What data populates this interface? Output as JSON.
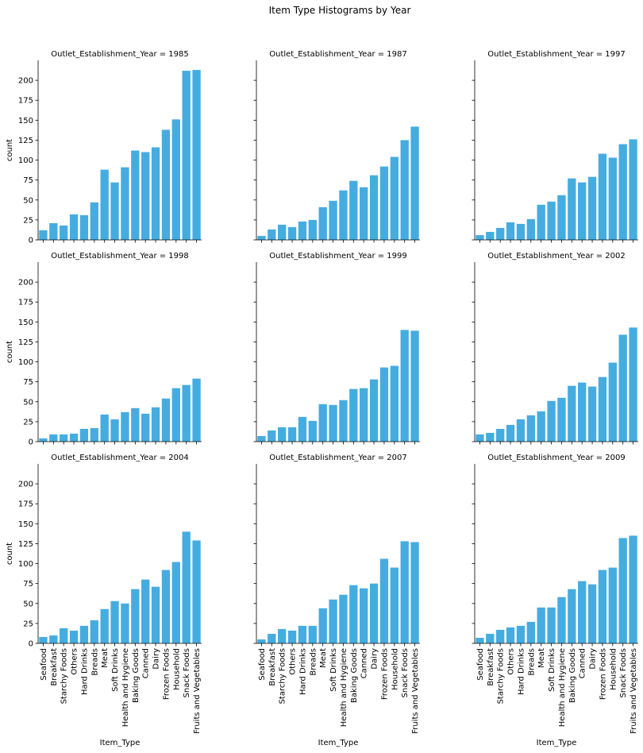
{
  "title": "Item Type Histograms by Year",
  "bar_color": "#45ACE0",
  "chart_data": {
    "type": "bar",
    "facet_by": "Outlet_Establishment_Year",
    "xlabel": "Item_Type",
    "ylabel": "count",
    "ylim": [
      0,
      225
    ],
    "yticks": [
      0,
      25,
      50,
      75,
      100,
      125,
      150,
      175,
      200
    ],
    "grid": false,
    "categories": [
      "Seafood",
      "Breakfast",
      "Starchy Foods",
      "Others",
      "Hard Drinks",
      "Breads",
      "Meat",
      "Soft Drinks",
      "Health and Hygiene",
      "Baking Goods",
      "Canned",
      "Dairy",
      "Frozen Foods",
      "Household",
      "Snack Foods",
      "Fruits and Vegetables"
    ],
    "panels": [
      {
        "title": "Outlet_Establishment_Year = 1985",
        "values": [
          12,
          21,
          18,
          32,
          31,
          47,
          88,
          72,
          91,
          112,
          110,
          116,
          138,
          151,
          212,
          213
        ]
      },
      {
        "title": "Outlet_Establishment_Year = 1987",
        "values": [
          5,
          13,
          19,
          16,
          23,
          25,
          41,
          49,
          62,
          74,
          66,
          81,
          92,
          104,
          125,
          142
        ]
      },
      {
        "title": "Outlet_Establishment_Year = 1997",
        "values": [
          6,
          10,
          15,
          22,
          20,
          26,
          44,
          48,
          56,
          77,
          72,
          79,
          108,
          103,
          120,
          126
        ]
      },
      {
        "title": "Outlet_Establishment_Year = 1998",
        "values": [
          4,
          9,
          9,
          10,
          16,
          17,
          34,
          28,
          37,
          42,
          35,
          43,
          54,
          67,
          71,
          79
        ]
      },
      {
        "title": "Outlet_Establishment_Year = 1999",
        "values": [
          7,
          14,
          18,
          18,
          31,
          26,
          47,
          46,
          52,
          66,
          67,
          78,
          93,
          95,
          140,
          139
        ]
      },
      {
        "title": "Outlet_Establishment_Year = 2002",
        "values": [
          9,
          11,
          16,
          21,
          28,
          33,
          38,
          51,
          55,
          70,
          74,
          69,
          81,
          99,
          134,
          143
        ]
      },
      {
        "title": "Outlet_Establishment_Year = 2004",
        "values": [
          8,
          10,
          19,
          16,
          22,
          29,
          43,
          53,
          50,
          68,
          80,
          71,
          92,
          102,
          140,
          129
        ]
      },
      {
        "title": "Outlet_Establishment_Year = 2007",
        "values": [
          5,
          12,
          18,
          16,
          22,
          22,
          44,
          55,
          61,
          73,
          69,
          75,
          106,
          95,
          128,
          127
        ]
      },
      {
        "title": "Outlet_Establishment_Year = 2009",
        "values": [
          7,
          12,
          17,
          20,
          22,
          27,
          45,
          45,
          58,
          68,
          78,
          74,
          92,
          95,
          132,
          135
        ]
      }
    ]
  }
}
